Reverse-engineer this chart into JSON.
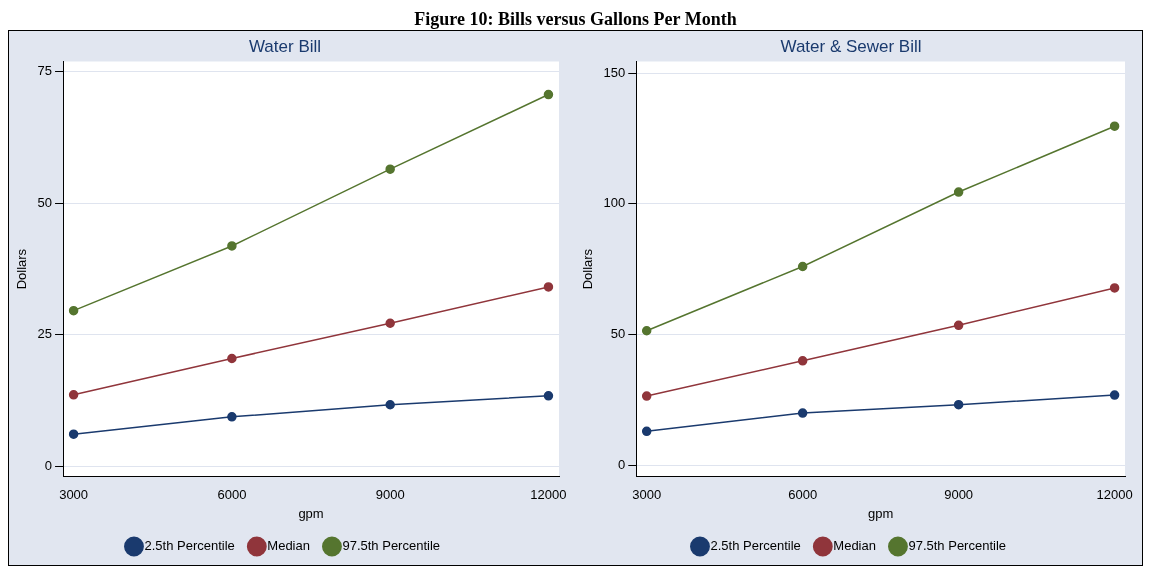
{
  "chart_data": [
    {
      "type": "line",
      "title": "Water Bill",
      "xlabel": "gpm",
      "ylabel": "Dollars",
      "annotations": [
        "Figure 10: Bills versus Gallons Per Month"
      ],
      "x": [
        3000,
        6000,
        9000,
        12000
      ],
      "xlim": [
        2800,
        12200
      ],
      "xticks": [
        3000,
        6000,
        9000,
        12000
      ],
      "ylim": [
        -2,
        77
      ],
      "yticks": [
        0,
        25,
        50,
        75
      ],
      "grid": "y",
      "legend": "bottom",
      "marker": "circle",
      "series": [
        {
          "name": "2.5th Percentile",
          "color": "#1a3a6e",
          "values": [
            6.1,
            9.4,
            11.7,
            13.4
          ]
        },
        {
          "name": "Median",
          "color": "#90353b",
          "values": [
            13.6,
            20.5,
            27.2,
            34.1
          ]
        },
        {
          "name": "97.5th Percentile",
          "color": "#55752f",
          "values": [
            29.6,
            41.9,
            56.5,
            70.7
          ]
        }
      ]
    },
    {
      "type": "line",
      "title": "Water & Sewer Bill",
      "xlabel": "gpm",
      "ylabel": "Dollars",
      "x": [
        3000,
        6000,
        9000,
        12000
      ],
      "xlim": [
        2800,
        12200
      ],
      "xticks": [
        3000,
        6000,
        9000,
        12000
      ],
      "ylim": [
        -4.5,
        154.5
      ],
      "yticks": [
        0,
        50,
        100,
        150
      ],
      "grid": "y",
      "legend": "bottom",
      "marker": "circle",
      "series": [
        {
          "name": "2.5th Percentile",
          "color": "#1a3a6e",
          "values": [
            12.9,
            19.9,
            23.1,
            26.8
          ]
        },
        {
          "name": "Median",
          "color": "#90353b",
          "values": [
            26.4,
            39.9,
            53.5,
            67.8
          ]
        },
        {
          "name": "97.5th Percentile",
          "color": "#55752f",
          "values": [
            51.4,
            76.0,
            104.5,
            129.7
          ]
        }
      ]
    }
  ]
}
